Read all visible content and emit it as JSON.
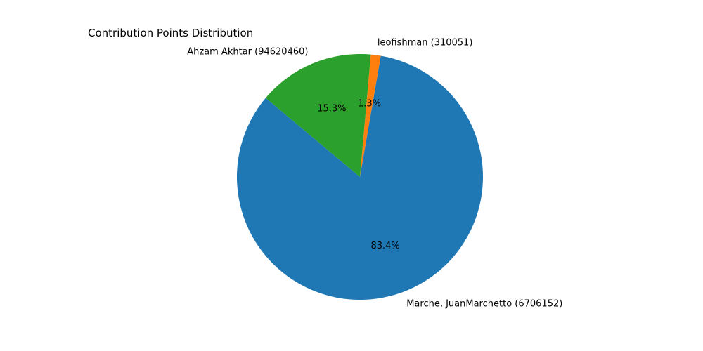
{
  "chart_data": {
    "type": "pie",
    "title": "Contribution Points Distribution",
    "slices": [
      {
        "label": "Marche, JuanMarchetto (6706152)",
        "percent": 83.4,
        "pct_label": "83.4%",
        "color": "#1f77b4"
      },
      {
        "label": "leofishman (310051)",
        "percent": 1.3,
        "pct_label": "1.3%",
        "color": "#ff7f0e"
      },
      {
        "label": "Ahzam Akhtar (94620460)",
        "percent": 15.3,
        "pct_label": "15.3%",
        "color": "#2ca02c"
      }
    ]
  }
}
